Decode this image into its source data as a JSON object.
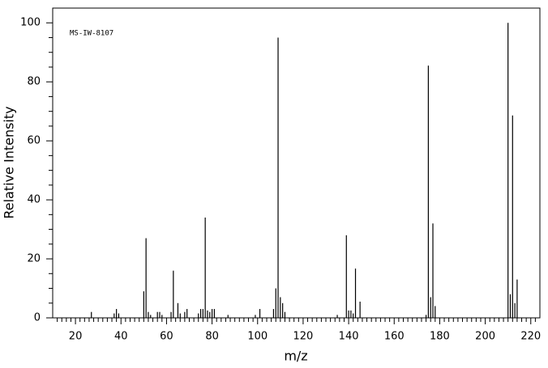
{
  "chart_data": {
    "type": "bar",
    "annotation": "MS-IW-8107",
    "xlabel": "m/z",
    "ylabel": "Relative Intensity",
    "color": "#000000",
    "x": [
      27,
      37,
      38,
      39,
      50,
      51,
      52,
      53,
      56,
      57,
      58,
      62,
      63,
      65,
      66,
      68,
      69,
      74,
      75,
      76,
      77,
      78,
      79,
      80,
      81,
      87,
      99,
      101,
      107,
      108,
      109,
      110,
      111,
      112,
      135,
      139,
      140,
      141,
      142,
      143,
      145,
      174,
      175,
      176,
      177,
      178,
      210,
      211,
      212,
      213,
      214
    ],
    "values": [
      2,
      1.5,
      3,
      1.5,
      9,
      27,
      2,
      1,
      2,
      2,
      1,
      2,
      16,
      5,
      1.5,
      2,
      3,
      1.5,
      3,
      3,
      34,
      2.5,
      2,
      3,
      3,
      1,
      1,
      3,
      3,
      10,
      95,
      7,
      5,
      2,
      1,
      28,
      2.5,
      2.5,
      1.5,
      16.7,
      5.5,
      1,
      85.5,
      7,
      32,
      4,
      100,
      8,
      68.6,
      5,
      13
    ],
    "xlim": [
      10,
      224
    ],
    "ylim": [
      0,
      105
    ],
    "xticks": [
      20,
      40,
      60,
      80,
      100,
      120,
      140,
      160,
      180,
      200,
      220
    ],
    "yticks": [
      0,
      20,
      40,
      60,
      80,
      100
    ],
    "xminorticks": [
      12,
      14,
      16,
      18,
      22,
      24,
      26,
      28,
      30,
      32,
      34,
      36,
      38,
      42,
      44,
      46,
      48,
      50,
      52,
      54,
      56,
      58,
      62,
      64,
      66,
      68,
      70,
      72,
      74,
      76,
      78,
      82,
      84,
      86,
      88,
      90,
      92,
      94,
      96,
      98,
      102,
      104,
      106,
      108,
      110,
      112,
      114,
      116,
      118,
      122,
      124,
      126,
      128,
      130,
      132,
      134,
      136,
      138,
      142,
      144,
      146,
      148,
      150,
      152,
      154,
      156,
      158,
      162,
      164,
      166,
      168,
      170,
      172,
      174,
      176,
      178,
      182,
      184,
      186,
      188,
      190,
      192,
      194,
      196,
      198,
      202,
      204,
      206,
      208,
      210,
      212,
      214,
      216,
      218,
      222
    ],
    "yminorticks": [
      5,
      10,
      15,
      25,
      30,
      35,
      45,
      50,
      55,
      65,
      70,
      75,
      85,
      90,
      95
    ]
  }
}
